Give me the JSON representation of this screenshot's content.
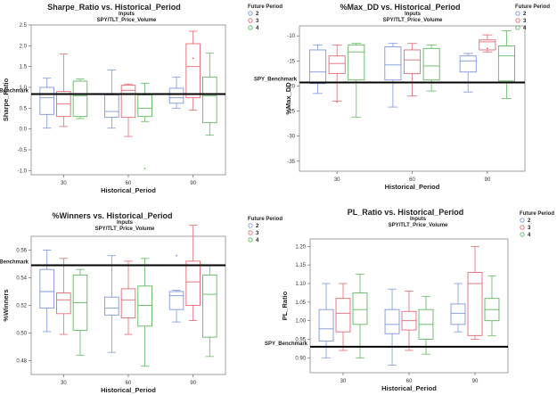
{
  "chart_data": [
    {
      "type": "box",
      "title": "Sharpe_Ratio vs. Historical_Period",
      "subtitle_line1": "Inputs",
      "subtitle_line2": "SPY/TLT_Price_Volume",
      "xlabel": "Historical_Period",
      "ylabel": "Sharpe_Ratio",
      "ylim": [
        -1.1,
        2.5
      ],
      "yticks": [
        -1.0,
        -0.5,
        0.0,
        0.5,
        1.0,
        1.5,
        2.0,
        2.5
      ],
      "ytick_labels": [
        "-1.0",
        "-0.5",
        "0.0",
        "0.5",
        "1.0",
        "1.5",
        "2.0",
        "2.5"
      ],
      "categories": [
        "30",
        "60",
        "90"
      ],
      "legend_title": "Future Period",
      "legend_position": "top-right",
      "benchmark": {
        "label": "SPY_Benchmark",
        "value": 0.84
      },
      "series": [
        {
          "name": "2",
          "color": "#7f96e0",
          "boxes": [
            {
              "min": 0.02,
              "q1": 0.35,
              "median": 0.75,
              "q3": 1.0,
              "max": 1.22,
              "outliers": []
            },
            {
              "min": 0.02,
              "q1": 0.28,
              "median": 0.42,
              "q3": 0.82,
              "max": 1.42,
              "outliers": []
            },
            {
              "min": 0.5,
              "q1": 0.62,
              "median": 0.75,
              "q3": 0.98,
              "max": 1.25,
              "outliers": []
            }
          ]
        },
        {
          "name": "3",
          "color": "#e06b75",
          "boxes": [
            {
              "min": 0.06,
              "q1": 0.3,
              "median": 0.6,
              "q3": 0.9,
              "max": 1.8,
              "outliers": []
            },
            {
              "min": -0.18,
              "q1": 0.28,
              "median": 0.93,
              "q3": 1.05,
              "max": 1.08,
              "outliers": []
            },
            {
              "min": 0.45,
              "q1": 0.75,
              "median": 1.5,
              "q3": 2.05,
              "max": 2.35,
              "outliers": [
                1.7
              ]
            }
          ]
        },
        {
          "name": "4",
          "color": "#5fb85f",
          "boxes": [
            {
              "min": 0.25,
              "q1": 0.3,
              "median": 0.8,
              "q3": 1.15,
              "max": 1.2,
              "outliers": []
            },
            {
              "min": 0.18,
              "q1": 0.3,
              "median": 0.5,
              "q3": 0.82,
              "max": 1.1,
              "outliers": [
                -0.95
              ]
            },
            {
              "min": -0.15,
              "q1": 0.15,
              "median": 0.8,
              "q3": 1.25,
              "max": 1.82,
              "outliers": []
            }
          ]
        }
      ]
    },
    {
      "type": "box",
      "title": "%Max_DD vs. Historical_Period",
      "subtitle_line1": "Inputs",
      "subtitle_line2": "SPY/TLT_Price_Volume",
      "xlabel": "Historical_Period",
      "ylabel": "%Max_DD",
      "ylim": [
        -37,
        -8
      ],
      "yticks": [
        -35,
        -30,
        -25,
        -20,
        -15,
        -10
      ],
      "ytick_labels": [
        "-35",
        "-30",
        "-25",
        "-20",
        "-15",
        "-10"
      ],
      "categories": [
        "30",
        "60",
        "90"
      ],
      "legend_title": "Future Period",
      "legend_position": "top-right",
      "benchmark": {
        "label": "SPY_Benchmark",
        "value": -19.3
      },
      "series": [
        {
          "name": "2",
          "color": "#7f96e0",
          "boxes": [
            {
              "min": -21.5,
              "q1": -19.5,
              "median": -17.2,
              "q3": -12.8,
              "max": -11.8,
              "outliers": []
            },
            {
              "min": -24.2,
              "q1": -18.8,
              "median": -15.8,
              "q3": -12.2,
              "max": -11.5,
              "outliers": []
            },
            {
              "min": -21.2,
              "q1": -17.2,
              "median": -15.0,
              "q3": -14.0,
              "max": -13.5,
              "outliers": []
            }
          ]
        },
        {
          "name": "3",
          "color": "#e06b75",
          "boxes": [
            {
              "min": -23.0,
              "q1": -17.5,
              "median": -15.5,
              "q3": -14.0,
              "max": -11.8,
              "outliers": [
                -23.2
              ]
            },
            {
              "min": -22.0,
              "q1": -17.5,
              "median": -14.8,
              "q3": -12.8,
              "max": -11.5,
              "outliers": []
            },
            {
              "min": -13.2,
              "q1": -12.8,
              "median": -11.2,
              "q3": -10.8,
              "max": -9.8,
              "outliers": [
                -12.5
              ]
            }
          ]
        },
        {
          "name": "4",
          "color": "#5fb85f",
          "boxes": [
            {
              "min": -26.2,
              "q1": -18.8,
              "median": -13.2,
              "q3": -11.8,
              "max": -11.5,
              "outliers": []
            },
            {
              "min": -21.0,
              "q1": -18.8,
              "median": -16.0,
              "q3": -12.5,
              "max": -11.8,
              "outliers": []
            },
            {
              "min": -22.5,
              "q1": -19.0,
              "median": -14.0,
              "q3": -12.0,
              "max": -9.0,
              "outliers": []
            }
          ]
        }
      ]
    },
    {
      "type": "box",
      "title": "%Winners vs. Historical_Period",
      "subtitle_line1": "Inputs",
      "subtitle_line2": "SPY/TLT_Price_Volume",
      "xlabel": "Historical_Period",
      "ylabel": "%Winners",
      "ylim": [
        0.47,
        0.57
      ],
      "yticks": [
        0.48,
        0.5,
        0.52,
        0.54,
        0.56
      ],
      "ytick_labels": [
        "0.48",
        "0.50",
        "0.52",
        "0.54",
        "0.56"
      ],
      "categories": [
        "30",
        "60",
        "90"
      ],
      "legend_title": "Future Period",
      "legend_position": "top-right",
      "benchmark": {
        "label": "SPY_Benchmark",
        "value": 0.549
      },
      "series": [
        {
          "name": "2",
          "color": "#7f96e0",
          "boxes": [
            {
              "min": 0.501,
              "q1": 0.518,
              "median": 0.53,
              "q3": 0.546,
              "max": 0.56,
              "outliers": []
            },
            {
              "min": 0.486,
              "q1": 0.513,
              "median": 0.518,
              "q3": 0.526,
              "max": 0.556,
              "outliers": []
            },
            {
              "min": 0.508,
              "q1": 0.517,
              "median": 0.527,
              "q3": 0.53,
              "max": 0.531,
              "outliers": [
                0.556
              ]
            }
          ]
        },
        {
          "name": "3",
          "color": "#e06b75",
          "boxes": [
            {
              "min": 0.499,
              "q1": 0.514,
              "median": 0.524,
              "q3": 0.529,
              "max": 0.554,
              "outliers": []
            },
            {
              "min": 0.499,
              "q1": 0.511,
              "median": 0.524,
              "q3": 0.532,
              "max": 0.552,
              "outliers": []
            },
            {
              "min": 0.509,
              "q1": 0.52,
              "median": 0.537,
              "q3": 0.552,
              "max": 0.578,
              "outliers": []
            }
          ]
        },
        {
          "name": "4",
          "color": "#5fb85f",
          "boxes": [
            {
              "min": 0.484,
              "q1": 0.502,
              "median": 0.522,
              "q3": 0.542,
              "max": 0.546,
              "outliers": []
            },
            {
              "min": 0.476,
              "q1": 0.505,
              "median": 0.52,
              "q3": 0.534,
              "max": 0.554,
              "outliers": []
            },
            {
              "min": 0.483,
              "q1": 0.497,
              "median": 0.528,
              "q3": 0.542,
              "max": 0.549,
              "outliers": []
            }
          ]
        }
      ]
    },
    {
      "type": "box",
      "title": "PL_Ratio vs. Historical_Period",
      "subtitle_line1": "Inputs",
      "subtitle_line2": "SPY/TLT_Price_Volume",
      "xlabel": "Historical_Period",
      "ylabel": "PL_Ratio",
      "ylim": [
        0.86,
        1.22
      ],
      "yticks": [
        0.9,
        0.95,
        1.0,
        1.05,
        1.1,
        1.15,
        1.2
      ],
      "ytick_labels": [
        "0.90",
        "0.95",
        "1.00",
        "1.05",
        "1.10",
        "1.15",
        "1.20"
      ],
      "categories": [
        "30",
        "60",
        "90"
      ],
      "legend_title": "Future Period",
      "legend_position": "top-right",
      "benchmark": {
        "label": "SPY_Benchmark",
        "value": 0.93
      },
      "series": [
        {
          "name": "2",
          "color": "#7f96e0",
          "boxes": [
            {
              "min": 0.9,
              "q1": 0.945,
              "median": 0.978,
              "q3": 1.03,
              "max": 1.1,
              "outliers": []
            },
            {
              "min": 0.88,
              "q1": 0.965,
              "median": 0.99,
              "q3": 1.03,
              "max": 1.085,
              "outliers": []
            },
            {
              "min": 0.97,
              "q1": 0.99,
              "median": 1.02,
              "q3": 1.045,
              "max": 1.1,
              "outliers": []
            }
          ]
        },
        {
          "name": "3",
          "color": "#e06b75",
          "boxes": [
            {
              "min": 0.92,
              "q1": 0.97,
              "median": 1.02,
              "q3": 1.06,
              "max": 1.1,
              "outliers": []
            },
            {
              "min": 0.92,
              "q1": 0.975,
              "median": 1.0,
              "q3": 1.025,
              "max": 1.08,
              "outliers": []
            },
            {
              "min": 0.95,
              "q1": 0.96,
              "median": 1.1,
              "q3": 1.13,
              "max": 1.2,
              "outliers": []
            }
          ]
        },
        {
          "name": "4",
          "color": "#5fb85f",
          "boxes": [
            {
              "min": 0.9,
              "q1": 0.99,
              "median": 1.03,
              "q3": 1.075,
              "max": 1.125,
              "outliers": []
            },
            {
              "min": 0.91,
              "q1": 0.95,
              "median": 0.99,
              "q3": 1.03,
              "max": 1.065,
              "outliers": []
            },
            {
              "min": 0.96,
              "q1": 1.0,
              "median": 1.03,
              "q3": 1.06,
              "max": 1.12,
              "outliers": []
            }
          ]
        }
      ]
    }
  ]
}
